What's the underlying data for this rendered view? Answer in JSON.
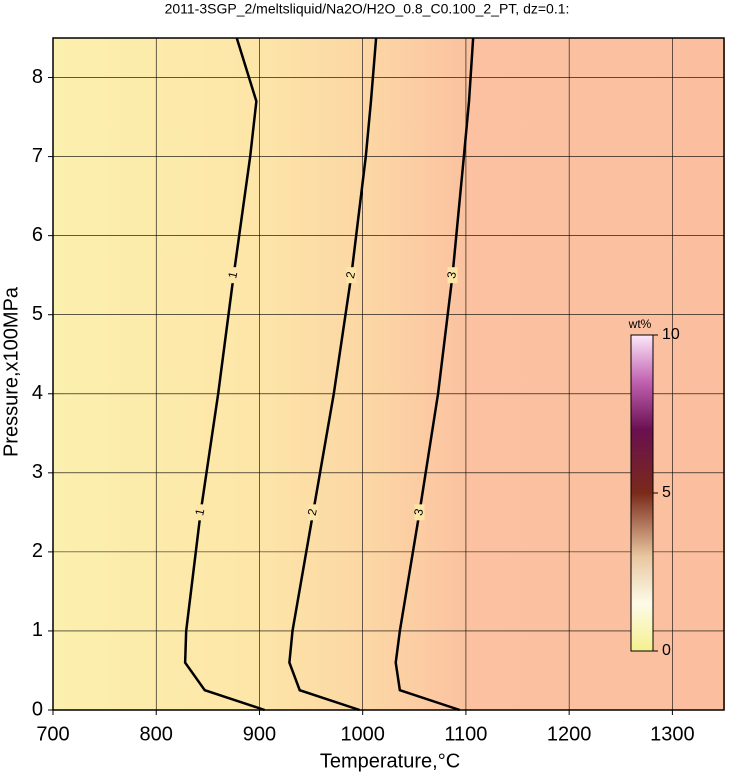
{
  "chart_data": {
    "type": "contour",
    "title": "2011-3SGP_2/meltsliquid/Na2O/H2O_0.8_C0.100_2_PT, dz=0.1:",
    "x_label": "Temperature,°C",
    "y_label": "Pressure,x100MPa",
    "xlim": [
      700,
      1350
    ],
    "ylim": [
      0,
      8.5
    ],
    "xticks": [
      700,
      800,
      900,
      1000,
      1100,
      1200,
      1300
    ],
    "yticks": [
      0,
      1,
      2,
      3,
      4,
      5,
      6,
      7,
      8
    ],
    "grid": true,
    "contours": [
      {
        "level": 1,
        "x": [
          905,
          847,
          828,
          829,
          843,
          860,
          875,
          891,
          897,
          878
        ],
        "y": [
          0,
          0.25,
          0.6,
          1,
          2.5,
          4,
          5.5,
          7,
          7.7,
          8.5
        ]
      },
      {
        "level": 2,
        "x": [
          997,
          939,
          929,
          932,
          952,
          972,
          989,
          1003,
          1008,
          1013
        ],
        "y": [
          0,
          0.25,
          0.6,
          1,
          2.5,
          4,
          5.5,
          7,
          7.7,
          8.5
        ]
      },
      {
        "level": 3,
        "x": [
          1094,
          1036,
          1032,
          1036,
          1055,
          1073,
          1087,
          1098,
          1103,
          1107
        ],
        "y": [
          0,
          0.25,
          0.6,
          1,
          2.5,
          4,
          5.5,
          7,
          7.7,
          8.5
        ]
      }
    ],
    "colorbar": {
      "label": "wt%",
      "lim": [
        0,
        10
      ],
      "ticks": [
        0,
        5,
        10
      ]
    }
  }
}
